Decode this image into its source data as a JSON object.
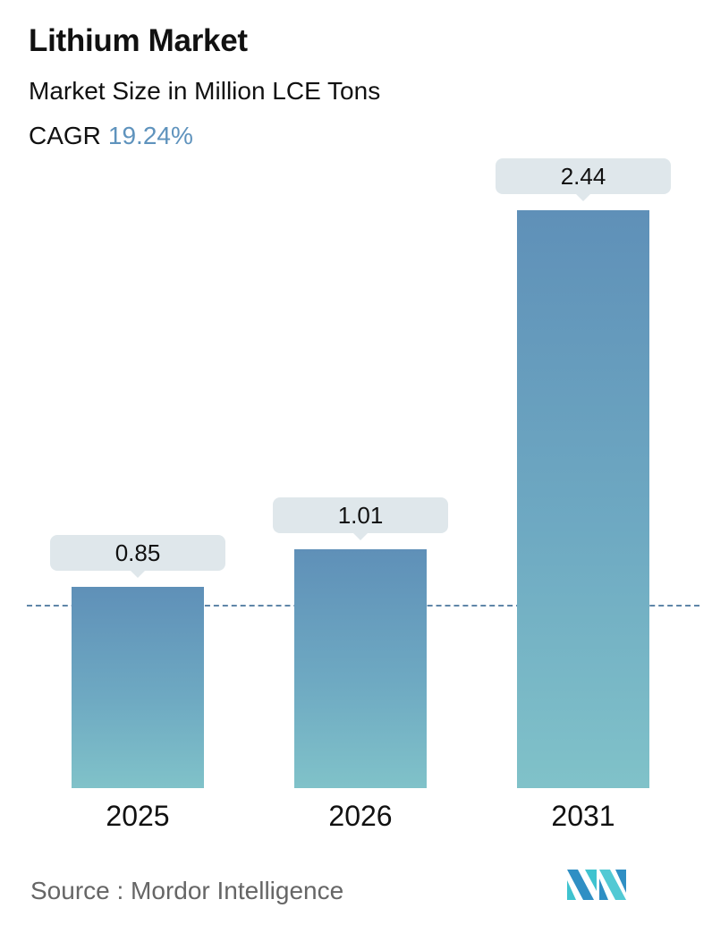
{
  "header": {
    "title": "Lithium Market",
    "subtitle": "Market Size in Million LCE Tons",
    "cagr_label": "CAGR",
    "cagr_value": "19.24%"
  },
  "colors": {
    "bar_top": "#5f90b8",
    "bar_bottom": "#80c2c9",
    "cagr_accent": "#5f93bd",
    "label_box": "#dfe7eb",
    "dashed_line": "#5f86a8"
  },
  "chart_data": {
    "type": "bar",
    "title": "Lithium Market",
    "subtitle": "Market Size in Million LCE Tons",
    "categories": [
      "2025",
      "2026",
      "2031"
    ],
    "values": [
      0.85,
      1.01,
      2.44
    ],
    "value_labels": [
      "0.85",
      "1.01",
      "2.44"
    ],
    "xlabel": "",
    "ylabel": "Market Size in Million LCE Tons",
    "annotations": [
      "CAGR 19.24%"
    ],
    "reference_line": {
      "style": "dashed",
      "at_value": 0.85
    },
    "grid": false,
    "legend": null
  },
  "footer": {
    "source": "Source :  Mordor Intelligence",
    "logo": "mordor-intelligence-logo"
  }
}
